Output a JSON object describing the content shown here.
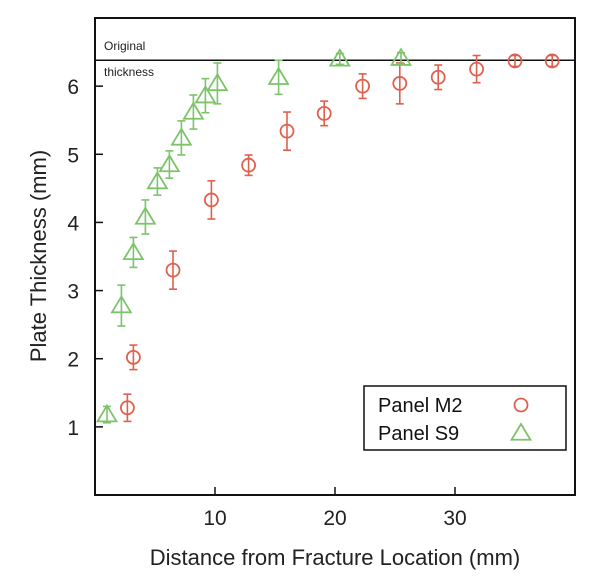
{
  "chart_data": {
    "type": "scatter",
    "xlabel": "Distance from Fracture Location (mm)",
    "ylabel": "Plate Thickness (mm)",
    "xlim": [
      0,
      40
    ],
    "ylim": [
      0,
      7
    ],
    "xticks": [
      10,
      20,
      30
    ],
    "yticks": [
      1,
      2,
      3,
      4,
      5,
      6
    ],
    "grid": false,
    "legend_position": "bottom-right",
    "reference_line": {
      "y": 6.38,
      "label_line1": "Original",
      "label_line2": "thickness"
    },
    "series": [
      {
        "name": "Panel M2",
        "marker": "circle",
        "color": "#e0604e",
        "points": [
          {
            "x": 2.7,
            "y": 1.28,
            "err": 0.2
          },
          {
            "x": 3.2,
            "y": 2.02,
            "err": 0.18
          },
          {
            "x": 6.5,
            "y": 3.3,
            "err": 0.28
          },
          {
            "x": 9.7,
            "y": 4.33,
            "err": 0.28
          },
          {
            "x": 12.8,
            "y": 4.84,
            "err": 0.15
          },
          {
            "x": 16.0,
            "y": 5.34,
            "err": 0.28
          },
          {
            "x": 19.1,
            "y": 5.6,
            "err": 0.18
          },
          {
            "x": 22.3,
            "y": 6.0,
            "err": 0.18
          },
          {
            "x": 25.4,
            "y": 6.04,
            "err": 0.3
          },
          {
            "x": 28.6,
            "y": 6.13,
            "err": 0.18
          },
          {
            "x": 31.8,
            "y": 6.25,
            "err": 0.2
          },
          {
            "x": 35.0,
            "y": 6.37,
            "err": 0.08
          },
          {
            "x": 38.1,
            "y": 6.37,
            "err": 0.08
          }
        ]
      },
      {
        "name": "Panel S9",
        "marker": "triangle",
        "color": "#7cc36a",
        "points": [
          {
            "x": 1.0,
            "y": 1.18,
            "err": 0.12
          },
          {
            "x": 2.2,
            "y": 2.78,
            "err": 0.3
          },
          {
            "x": 3.2,
            "y": 3.56,
            "err": 0.22
          },
          {
            "x": 4.2,
            "y": 4.08,
            "err": 0.25
          },
          {
            "x": 5.2,
            "y": 4.6,
            "err": 0.2
          },
          {
            "x": 6.2,
            "y": 4.85,
            "err": 0.2
          },
          {
            "x": 7.2,
            "y": 5.24,
            "err": 0.25
          },
          {
            "x": 8.2,
            "y": 5.62,
            "err": 0.25
          },
          {
            "x": 9.2,
            "y": 5.86,
            "err": 0.25
          },
          {
            "x": 10.2,
            "y": 6.04,
            "err": 0.3
          },
          {
            "x": 15.3,
            "y": 6.13,
            "err": 0.25
          },
          {
            "x": 20.4,
            "y": 6.4,
            "err": 0.08
          },
          {
            "x": 25.5,
            "y": 6.41,
            "err": 0.08
          }
        ]
      }
    ]
  }
}
